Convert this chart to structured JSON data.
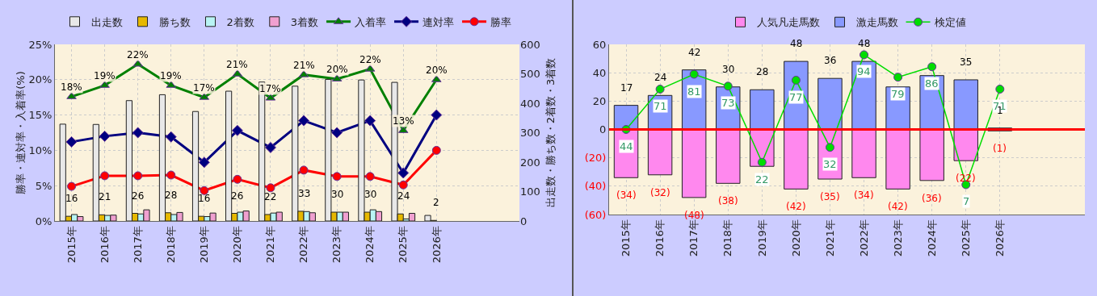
{
  "chart_data": [
    {
      "type": "bar",
      "categories": [
        "2015年",
        "2016年",
        "2017年",
        "2018年",
        "2019年",
        "2020年",
        "2021年",
        "2022年",
        "2023年",
        "2024年",
        "2025年",
        "2026年",
        null,
        null
      ],
      "series": [
        {
          "name": "出走数",
          "axis": "y2",
          "color": "#e8e8e8",
          "values": [
            329,
            328,
            409,
            429,
            372,
            441,
            472,
            458,
            481,
            479,
            471,
            19,
            null,
            null
          ]
        },
        {
          "name": "勝ち数",
          "axis": "y2",
          "color": "#e6b800",
          "values": [
            16,
            21,
            26,
            28,
            16,
            26,
            22,
            33,
            30,
            30,
            24,
            2,
            null,
            null
          ],
          "value_labels": [
            "16",
            "21",
            "26",
            "28",
            "16",
            "26",
            "22",
            "33",
            "30",
            "30",
            "24",
            "2",
            null,
            null
          ]
        },
        {
          "name": "2着数",
          "axis": "y2",
          "color": "#b8f4f4",
          "values": [
            22,
            19,
            24,
            22,
            15,
            30,
            27,
            32,
            30,
            38,
            7,
            0,
            null,
            null
          ]
        },
        {
          "name": "3着数",
          "axis": "y2",
          "color": "#f0a0d0",
          "values": [
            15,
            20,
            38,
            29,
            27,
            34,
            30,
            28,
            30,
            32,
            26,
            0,
            null,
            null
          ]
        },
        {
          "name": "入着率",
          "type": "line",
          "color": "#008000",
          "marker": "triangle",
          "values": [
            17.6,
            19.2,
            22.2,
            19.2,
            17.5,
            20.8,
            17.4,
            20.7,
            20.1,
            21.5,
            12.8,
            20.0,
            null,
            null
          ],
          "value_labels": [
            "18%",
            "19%",
            "22%",
            "19%",
            "17%",
            "21%",
            "17%",
            "21%",
            "20%",
            "22%",
            "13%",
            "20%",
            null,
            null
          ]
        },
        {
          "name": "連対率",
          "type": "line",
          "color": "#000080",
          "marker": "diamond",
          "values": [
            11.2,
            12.0,
            12.5,
            11.9,
            8.3,
            12.8,
            10.4,
            14.2,
            12.5,
            14.2,
            6.8,
            15.0,
            null,
            null
          ]
        },
        {
          "name": "勝率",
          "type": "line",
          "color": "#ff0000",
          "marker": "circle",
          "values": [
            4.9,
            6.4,
            6.4,
            6.5,
            4.3,
            5.9,
            4.7,
            7.2,
            6.3,
            6.3,
            5.1,
            10.0,
            null,
            null
          ]
        }
      ],
      "ylabel": "勝率・連対率・入着率(%)",
      "y2label": "出走数・勝ち数・2着数・3着数",
      "ylim": [
        0,
        25
      ],
      "yticks": [
        {
          "value": 0,
          "label": "0%"
        },
        {
          "value": 5,
          "label": "5%"
        },
        {
          "value": 10,
          "label": "10%"
        },
        {
          "value": 15,
          "label": "15%"
        },
        {
          "value": 20,
          "label": "20%"
        },
        {
          "value": 25,
          "label": "25%"
        }
      ],
      "y2lim": [
        0,
        600
      ],
      "y2ticks": [
        0,
        100,
        200,
        300,
        400,
        500,
        600
      ],
      "grid": true,
      "legend": "top"
    },
    {
      "type": "bar",
      "stacked": true,
      "categories": [
        "2015年",
        "2016年",
        "2017年",
        "2018年",
        "2019年",
        "2020年",
        "2021年",
        "2022年",
        "2023年",
        "2024年",
        "2025年",
        "2026年",
        null,
        null
      ],
      "series": [
        {
          "name": "人気凡走馬数",
          "color": "#ff88ee",
          "values": [
            -34,
            -32,
            -48,
            -38,
            -26,
            -42,
            -35,
            -34,
            -42,
            -36,
            -22,
            -1,
            null,
            null
          ],
          "value_labels": [
            "(34)",
            "(32)",
            "(48)",
            "(38)",
            null,
            "(42)",
            "(35)",
            "(34)",
            "(42)",
            "(36)",
            "(22)",
            "(1)",
            null,
            null
          ]
        },
        {
          "name": "激走馬数",
          "color": "#8899ff",
          "values": [
            17,
            24,
            42,
            30,
            28,
            48,
            36,
            48,
            30,
            38,
            35,
            1,
            null,
            null
          ],
          "value_labels": [
            "17",
            "24",
            "42",
            "30",
            "28",
            "48",
            "36",
            "48",
            null,
            null,
            "35",
            "1",
            null,
            null
          ]
        },
        {
          "name": "検定値",
          "type": "line",
          "axis": "y2",
          "color": "#00dd00",
          "marker": "circle",
          "values": [
            44,
            71,
            81,
            73,
            22,
            77,
            32,
            94,
            79,
            86,
            7,
            71,
            null,
            null
          ],
          "value_labels": [
            "44",
            "71",
            "81",
            "73",
            "22",
            "77",
            "32",
            "94",
            "79",
            "86",
            "7",
            "71",
            null,
            null
          ]
        }
      ],
      "ylim": [
        -60,
        60
      ],
      "yticks": [
        {
          "value": -60,
          "label": "(60)"
        },
        {
          "value": -40,
          "label": "(40)"
        },
        {
          "value": -20,
          "label": "(20)"
        },
        0,
        20,
        40,
        60
      ],
      "y2lim": [
        -13,
        101
      ],
      "ref_lines": [
        {
          "axis": "y",
          "value": 0,
          "color": "#ff0000"
        }
      ],
      "grid": true,
      "legend": "top"
    }
  ]
}
